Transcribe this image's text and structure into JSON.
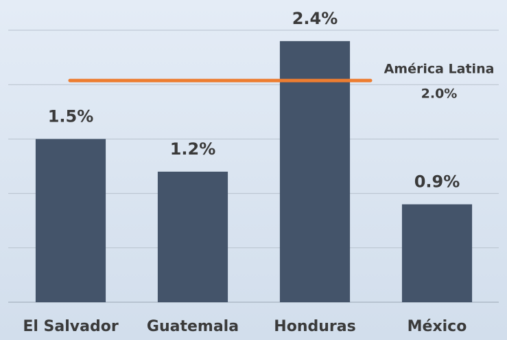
{
  "chart_data": {
    "type": "bar",
    "categories": [
      "El Salvador",
      "Guatemala",
      "Honduras",
      "México"
    ],
    "values": [
      1.5,
      1.2,
      2.4,
      0.9
    ],
    "value_labels": [
      "1.5%",
      "1.2%",
      "2.4%",
      "0.9%"
    ],
    "color": "#44546a",
    "ylim": [
      0,
      2.5
    ],
    "yticks": [
      0,
      0.5,
      1,
      1.5,
      2,
      2.5
    ],
    "grid": true,
    "reference_line": {
      "label": "América Latina",
      "value": 2.0,
      "value_label": "2.0%",
      "color": "#ed7d31"
    }
  }
}
